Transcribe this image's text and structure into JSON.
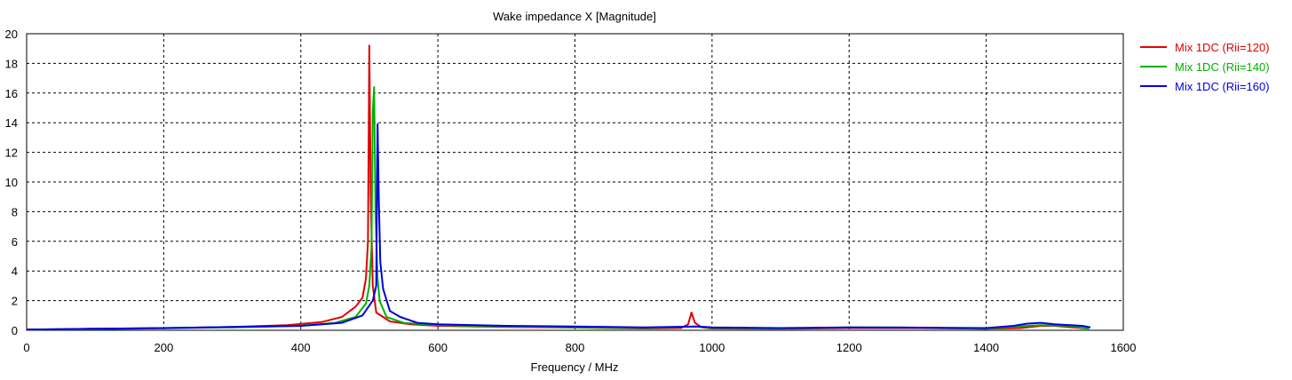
{
  "chart_data": {
    "type": "line",
    "title": "Wake impedance X [Magnitude]",
    "xlabel": "Frequency / MHz",
    "ylabel": "",
    "xlim": [
      0,
      1600
    ],
    "ylim": [
      0,
      20
    ],
    "x_ticks": [
      0,
      200,
      400,
      600,
      800,
      1000,
      1200,
      1400,
      1600
    ],
    "y_ticks": [
      0,
      2,
      4,
      6,
      8,
      10,
      12,
      14,
      16,
      18,
      20
    ],
    "grid": true,
    "legend_position": "right",
    "series": [
      {
        "name": "Mix 1DC (Rii=120)",
        "color": "#e00000",
        "points": [
          [
            0,
            0.05
          ],
          [
            100,
            0.1
          ],
          [
            200,
            0.15
          ],
          [
            300,
            0.22
          ],
          [
            380,
            0.35
          ],
          [
            430,
            0.55
          ],
          [
            460,
            0.9
          ],
          [
            480,
            1.6
          ],
          [
            490,
            2.2
          ],
          [
            495,
            3.5
          ],
          [
            498,
            6.0
          ],
          [
            500,
            19.2
          ],
          [
            502,
            9.0
          ],
          [
            505,
            3.0
          ],
          [
            510,
            1.2
          ],
          [
            530,
            0.6
          ],
          [
            560,
            0.4
          ],
          [
            600,
            0.3
          ],
          [
            700,
            0.22
          ],
          [
            800,
            0.18
          ],
          [
            900,
            0.12
          ],
          [
            955,
            0.15
          ],
          [
            965,
            0.4
          ],
          [
            970,
            1.2
          ],
          [
            975,
            0.5
          ],
          [
            985,
            0.2
          ],
          [
            1000,
            0.12
          ],
          [
            1100,
            0.1
          ],
          [
            1200,
            0.15
          ],
          [
            1300,
            0.15
          ],
          [
            1400,
            0.1
          ],
          [
            1450,
            0.15
          ],
          [
            1480,
            0.3
          ],
          [
            1500,
            0.3
          ],
          [
            1550,
            0.1
          ]
        ]
      },
      {
        "name": "Mix 1DC (Rii=140)",
        "color": "#00b000",
        "points": [
          [
            0,
            0.05
          ],
          [
            100,
            0.08
          ],
          [
            200,
            0.13
          ],
          [
            300,
            0.2
          ],
          [
            400,
            0.3
          ],
          [
            450,
            0.5
          ],
          [
            480,
            0.9
          ],
          [
            495,
            1.8
          ],
          [
            500,
            3.0
          ],
          [
            503,
            5.5
          ],
          [
            505,
            14.7
          ],
          [
            507,
            16.4
          ],
          [
            509,
            8.0
          ],
          [
            512,
            3.5
          ],
          [
            515,
            2.0
          ],
          [
            525,
            0.9
          ],
          [
            550,
            0.5
          ],
          [
            600,
            0.35
          ],
          [
            700,
            0.25
          ],
          [
            800,
            0.2
          ],
          [
            900,
            0.15
          ],
          [
            975,
            0.25
          ],
          [
            1000,
            0.15
          ],
          [
            1100,
            0.12
          ],
          [
            1200,
            0.2
          ],
          [
            1300,
            0.18
          ],
          [
            1400,
            0.1
          ],
          [
            1460,
            0.3
          ],
          [
            1480,
            0.35
          ],
          [
            1520,
            0.3
          ],
          [
            1550,
            0.1
          ]
        ]
      },
      {
        "name": "Mix 1DC (Rii=160)",
        "color": "#0000e0",
        "points": [
          [
            0,
            0.05
          ],
          [
            100,
            0.1
          ],
          [
            200,
            0.15
          ],
          [
            300,
            0.22
          ],
          [
            400,
            0.3
          ],
          [
            460,
            0.5
          ],
          [
            490,
            1.0
          ],
          [
            505,
            2.0
          ],
          [
            510,
            3.0
          ],
          [
            512,
            13.9
          ],
          [
            514,
            8.5
          ],
          [
            516,
            4.6
          ],
          [
            520,
            2.8
          ],
          [
            530,
            1.3
          ],
          [
            545,
            0.9
          ],
          [
            570,
            0.5
          ],
          [
            600,
            0.4
          ],
          [
            700,
            0.3
          ],
          [
            800,
            0.25
          ],
          [
            900,
            0.2
          ],
          [
            980,
            0.25
          ],
          [
            1000,
            0.2
          ],
          [
            1100,
            0.15
          ],
          [
            1200,
            0.2
          ],
          [
            1300,
            0.18
          ],
          [
            1400,
            0.15
          ],
          [
            1440,
            0.3
          ],
          [
            1460,
            0.45
          ],
          [
            1480,
            0.5
          ],
          [
            1500,
            0.4
          ],
          [
            1540,
            0.3
          ],
          [
            1552,
            0.2
          ]
        ]
      }
    ]
  }
}
